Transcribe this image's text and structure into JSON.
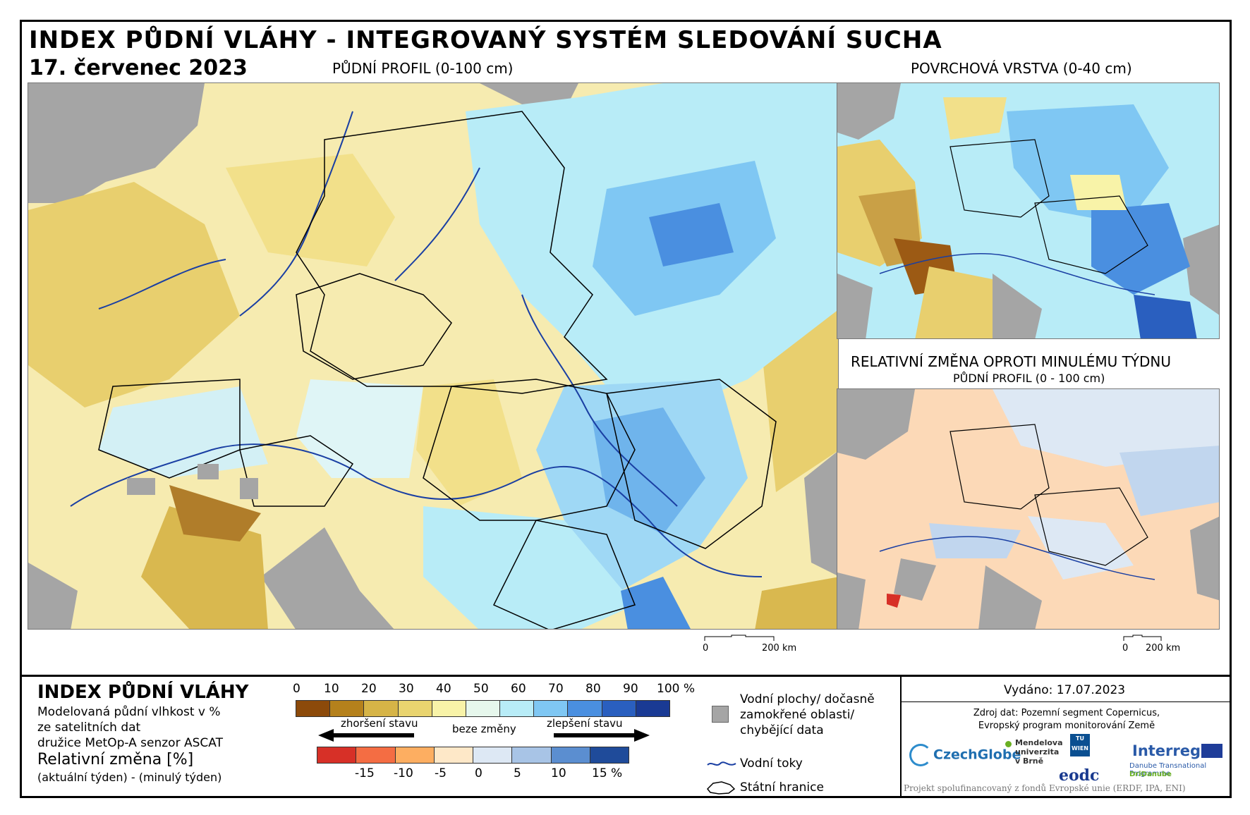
{
  "title": "INDEX PŮDNÍ VLÁHY - INTEGROVANÝ SYSTÉM SLEDOVÁNÍ SUCHA",
  "date": "17. červenec 2023",
  "main_map": {
    "header": "PŮDNÍ PROFIL (0-100 cm)",
    "scale": {
      "zero": "0",
      "end": "200 km"
    }
  },
  "surface_map": {
    "header": "POVRCHOVÁ VRSTVA (0-40 cm)",
    "scale": {
      "zero": "0",
      "end": "200 km"
    }
  },
  "change_map": {
    "header": "RELATIVNÍ ZMĚNA OPROTI MINULÉMU TÝDNU",
    "subheader": "PŮDNÍ PROFIL (0 - 100 cm)"
  },
  "legend": {
    "index_title": "INDEX PŮDNÍ VLÁHY",
    "index_desc": [
      "Modelovaná půdní vlhkost v %",
      "ze satelitních dat",
      "družice MetOp-A senzor ASCAT"
    ],
    "change_title": "Relativní změna [%]",
    "change_desc": "(aktuální týden) - (minulý týden)",
    "index_ticks": [
      "0",
      "10",
      "20",
      "30",
      "40",
      "50",
      "60",
      "70",
      "80",
      "90",
      "100 %"
    ],
    "index_colors": [
      "#8c4a0a",
      "#b5811c",
      "#d6b447",
      "#e9d46f",
      "#f8f3a8",
      "#e6f7ec",
      "#b8ecf7",
      "#7fc7f3",
      "#4a8fe0",
      "#2a5fbf",
      "#1a3a94"
    ],
    "worse_label": "zhoršení stavu",
    "nochange_label": "beze změny",
    "better_label": "zlepšení stavu",
    "change_ticks": [
      "-15",
      "-10",
      "-5",
      "0",
      "5",
      "10",
      "15 %"
    ],
    "change_colors": [
      "#d73027",
      "#f46d43",
      "#fdae61",
      "#fee8c8",
      "#dde8f4",
      "#a8c4e6",
      "#5b8ed0",
      "#1f4b9a"
    ],
    "water_label": [
      "Vodní plochy/ dočasně",
      "zamokřené oblasti/",
      "chybějící data"
    ],
    "rivers_label": "Vodní toky",
    "borders_label": "Státní hranice"
  },
  "info": {
    "issued": "Vydáno: 17.07.2023",
    "source": [
      "Zdroj dat: Pozemní segment Copernicus,",
      "Evropský program monitorování Země"
    ],
    "logos": {
      "czechglobe": "CzechGlobe",
      "mendel": [
        "Mendelova",
        "univerzita",
        "v Brně"
      ],
      "tu": "TU WIEN",
      "eodc": "eodc",
      "interreg": "Interreg",
      "interreg_sub": "Danube Transnational Programme",
      "dridanube": "DriDanube"
    },
    "footer": "Projekt spolufinancovaný z fondů Evropské unie (ERDF, IPA, ENI)"
  }
}
